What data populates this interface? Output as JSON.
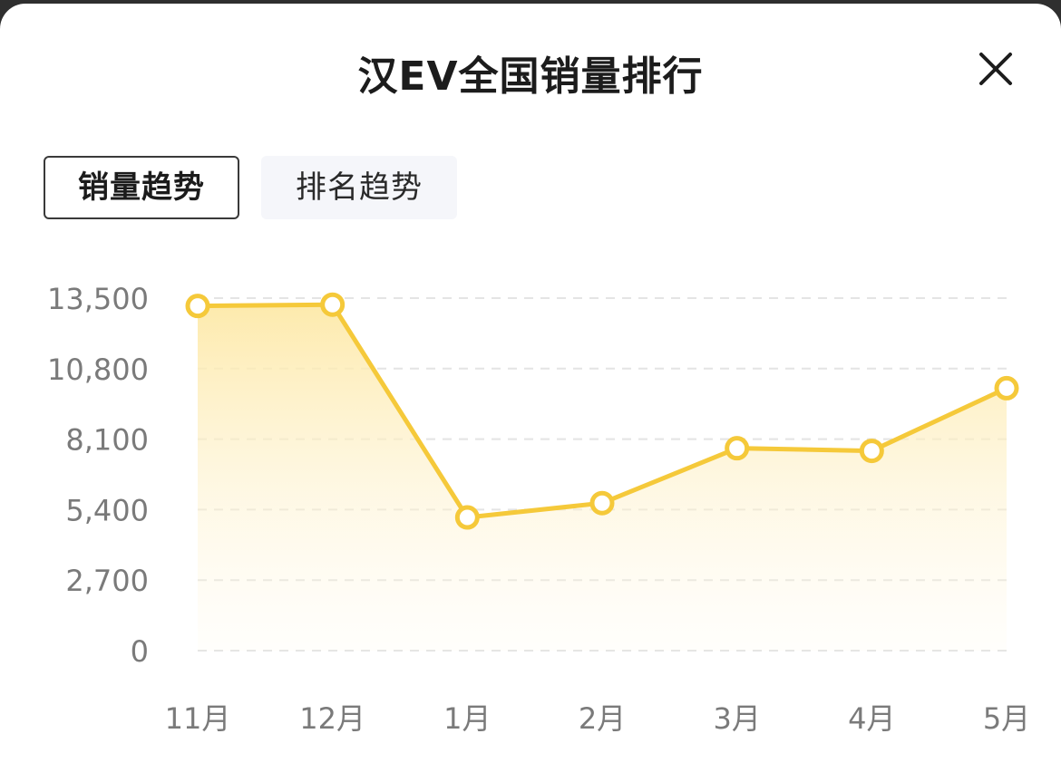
{
  "header": {
    "title": "汉EV全国销量排行",
    "close_icon": "close-icon"
  },
  "tabs": [
    {
      "label": "销量趋势",
      "active": true
    },
    {
      "label": "排名趋势",
      "active": false
    }
  ],
  "colors": {
    "line": "#f5c93a",
    "fill_top": "#fde9a8",
    "grid": "#e4e4e4",
    "axis_text": "#7a7a7a"
  },
  "chart_data": {
    "type": "area",
    "categories": [
      "11月",
      "12月",
      "1月",
      "2月",
      "3月",
      "4月",
      "5月"
    ],
    "values": [
      13200,
      13250,
      5100,
      5650,
      7750,
      7650,
      10050
    ],
    "yticks": [
      "13,500",
      "10,800",
      "8,100",
      "5,400",
      "2,700",
      "0"
    ],
    "ylim": [
      0,
      13500
    ],
    "grid": true,
    "xlabel": "",
    "ylabel": ""
  }
}
